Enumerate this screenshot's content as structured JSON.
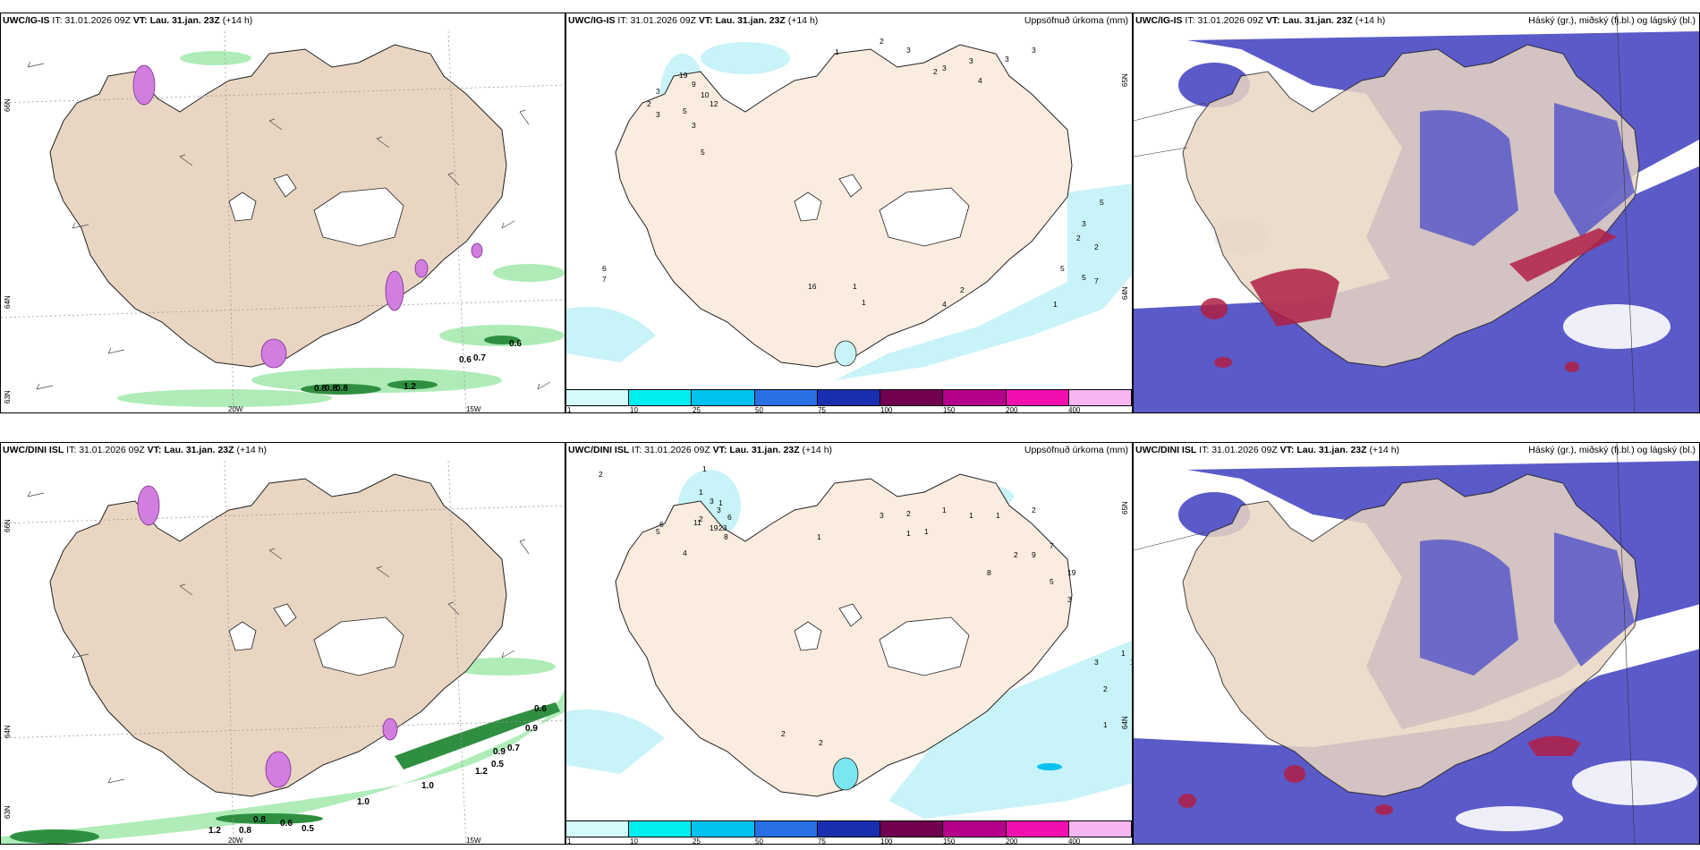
{
  "colors": {
    "land": "#f0e1d0",
    "land_tan": "#e9d6c2",
    "glacier": "#ffffff",
    "cloud": "#5a5ac8",
    "cloud_high": "#b02045",
    "precip_light": "#c8f3f8",
    "wind_green": "#8fe09a",
    "wind_dark": "#2e8b3f",
    "snow_pink": "#d27ee0"
  },
  "row1": {
    "wind": {
      "model": "UWC/IG-IS",
      "it_label": "IT:",
      "it_value": "31.01.2026 09Z",
      "vt_label": "VT: Lau. 31.jan. 23Z",
      "lead": "(+14 h)",
      "lat_labels": [
        "66N",
        "64N",
        "63N"
      ],
      "lon_labels": [
        "20W",
        "15W"
      ],
      "values": [
        "0.6",
        "0.7",
        "0.6",
        "0.8",
        "0.8",
        "0.8",
        "1.2"
      ]
    },
    "precip": {
      "model": "UWC/IG-IS",
      "it_label": "IT:",
      "it_value": "31.01.2026 09Z",
      "vt_label": "VT: Lau. 31.jan. 23Z",
      "lead": "(+14 h)",
      "right_title": "Uppsöfnuð úrkoma (mm)",
      "lat_labels": [
        "65N",
        "64N"
      ],
      "numbers": [
        "1",
        "2",
        "3",
        "2",
        "3",
        "3",
        "4",
        "3",
        "3",
        "19",
        "9",
        "10",
        "12",
        "3",
        "5",
        "3",
        "2",
        "3",
        "5",
        "5",
        "3",
        "2",
        "5",
        "6",
        "7",
        "2",
        "1",
        "1",
        "7",
        "2",
        "5",
        "4",
        "16",
        "1"
      ]
    },
    "cloud": {
      "model": "UWC/IG-IS",
      "it_label": "IT:",
      "it_value": "31.01.2026 09Z",
      "vt_label": "VT: Lau. 31.jan. 23Z",
      "lead": "(+14 h)",
      "right_title": "Háský (gr.), miðský (fj.bl.) og lágský (bl.)"
    }
  },
  "row2": {
    "wind": {
      "model": "UWC/DINI ISL",
      "it_label": "IT:",
      "it_value": "31.01.2026 09Z",
      "vt_label": "VT: Lau. 31.jan. 23Z",
      "lead": "(+14 h)",
      "lat_labels": [
        "66N",
        "64N",
        "63N"
      ],
      "lon_labels": [
        "20W",
        "15W"
      ],
      "values": [
        "0.6",
        "0.9",
        "0.9",
        "0.7",
        "0.5",
        "1.2",
        "1.0",
        "1.0",
        "0.8",
        "0.6",
        "0.5",
        "1.2",
        "0.8"
      ]
    },
    "precip": {
      "model": "UWC/DINI ISL",
      "it_label": "IT:",
      "it_value": "31.01.2026 09Z",
      "vt_label": "VT: Lau. 31.jan. 23Z",
      "lead": "(+14 h)",
      "right_title": "Uppsöfnuð úrkoma (mm)",
      "lat_labels": [
        "65N",
        "64N"
      ],
      "numbers": [
        "2",
        "1",
        "1",
        "3",
        "1",
        "3",
        "2",
        "19",
        "6",
        "5",
        "4",
        "11",
        "23",
        "6",
        "8",
        "3",
        "2",
        "1",
        "1",
        "1",
        "2",
        "1",
        "1",
        "1",
        "2",
        "9",
        "7",
        "19",
        "8",
        "2",
        "2",
        "1",
        "5",
        "3",
        "3",
        "2",
        "1",
        "1"
      ]
    },
    "cloud": {
      "model": "UWC/DINI ISL",
      "it_label": "IT:",
      "it_value": "31.01.2026 09Z",
      "vt_label": "VT: Lau. 31.jan. 23Z",
      "lead": "(+14 h)",
      "right_title": "Háský (gr.), miðský (fj.bl.) og lágský (bl.)"
    }
  },
  "colorbar": {
    "ticks": [
      "1",
      "10",
      "25",
      "50",
      "75",
      "100",
      "150",
      "200",
      "400"
    ],
    "colors": [
      "#d4fafc",
      "#00eef0",
      "#00c2ee",
      "#2a6fe6",
      "#1a2fb0",
      "#70004f",
      "#b5008a",
      "#f010b0",
      "#f7b6f2"
    ]
  }
}
